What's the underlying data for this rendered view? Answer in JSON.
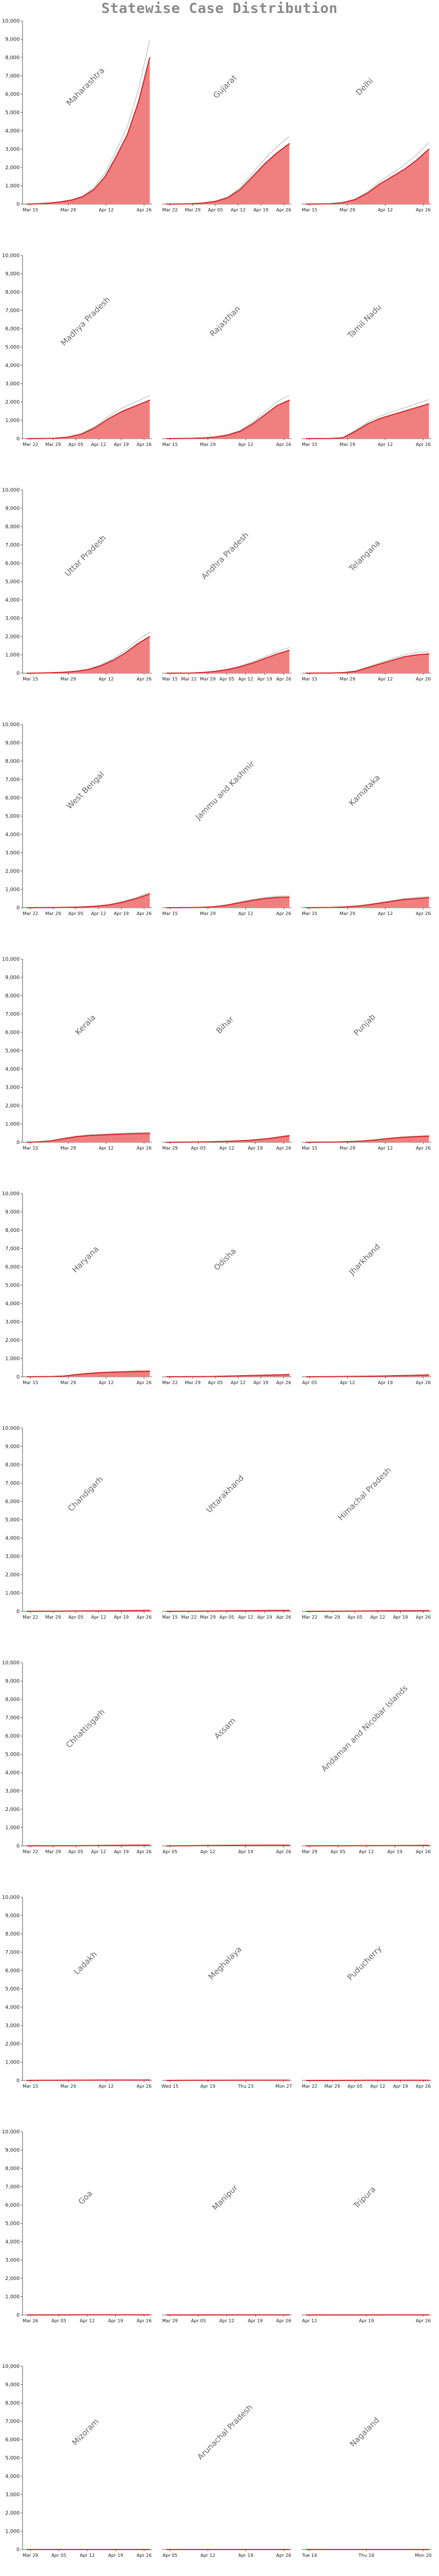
{
  "title": "Statewise Case Distribution",
  "colors": {
    "area": "#f08080",
    "line": "#d62728",
    "band": "#bfbfbf",
    "axis": "#333333"
  },
  "chart_data": {
    "type": "area",
    "layout": "small multiples, 11 rows x 3 columns, shared y axis",
    "ylim": [
      0,
      10000
    ],
    "yticks": [
      "0",
      "1,000",
      "2,000",
      "3,000",
      "4,000",
      "5,000",
      "6,000",
      "7,000",
      "8,000",
      "9,000",
      "10,000"
    ],
    "ytick_values": [
      0,
      1000,
      2000,
      3000,
      4000,
      5000,
      6000,
      7000,
      8000,
      9000,
      10000
    ],
    "panels": [
      {
        "name": "Maharashtra",
        "xticks": [
          "Mar 15",
          "Mar 29",
          "Apr 12",
          "Apr 26"
        ],
        "values": [
          0,
          20,
          60,
          120,
          220,
          400,
          800,
          1500,
          2600,
          3800,
          5600,
          8000
        ]
      },
      {
        "name": "Gujarat",
        "xticks": [
          "Mar 22",
          "Mar 29",
          "Apr 05",
          "Apr 12",
          "Apr 19",
          "Apr 26"
        ],
        "values": [
          0,
          5,
          20,
          60,
          150,
          350,
          800,
          1500,
          2200,
          2800,
          3300
        ]
      },
      {
        "name": "Delhi",
        "xticks": [
          "Mar 15",
          "Mar 29",
          "Apr 12",
          "Apr 26"
        ],
        "values": [
          0,
          5,
          20,
          80,
          250,
          600,
          1100,
          1500,
          1900,
          2400,
          3000
        ]
      },
      {
        "name": "Madhya Pradesh",
        "xticks": [
          "Mar 22",
          "Mar 29",
          "Apr 05",
          "Apr 12",
          "Apr 19",
          "Apr 26"
        ],
        "values": [
          0,
          5,
          20,
          80,
          250,
          600,
          1100,
          1500,
          1800,
          2100
        ]
      },
      {
        "name": "Rajasthan",
        "xticks": [
          "Mar 15",
          "Mar 29",
          "Apr 12",
          "Apr 26"
        ],
        "values": [
          0,
          5,
          15,
          40,
          90,
          200,
          400,
          800,
          1300,
          1800,
          2100
        ]
      },
      {
        "name": "Tamil Nadu",
        "xticks": [
          "Mar 15",
          "Mar 29",
          "Apr 12",
          "Apr 26"
        ],
        "values": [
          0,
          2,
          5,
          50,
          400,
          800,
          1100,
          1300,
          1500,
          1700,
          1900
        ]
      },
      {
        "name": "Uttar Pradesh",
        "xticks": [
          "Mar 15",
          "Mar 29",
          "Apr 12",
          "Apr 26"
        ],
        "values": [
          0,
          5,
          20,
          50,
          100,
          200,
          400,
          700,
          1100,
          1600,
          2000
        ]
      },
      {
        "name": "Andhra Pradesh",
        "xticks": [
          "Mar 15",
          "Mar 22",
          "Mar 29",
          "Apr 05",
          "Apr 12",
          "Apr 19",
          "Apr 26"
        ],
        "values": [
          0,
          2,
          10,
          40,
          100,
          200,
          350,
          550,
          800,
          1050,
          1250
        ]
      },
      {
        "name": "Telangana",
        "xticks": [
          "Mar 15",
          "Mar 29",
          "Apr 12",
          "Apr 26"
        ],
        "values": [
          0,
          5,
          10,
          30,
          100,
          300,
          500,
          700,
          900,
          1000,
          1050
        ]
      },
      {
        "name": "West Bengal",
        "xticks": [
          "Mar 22",
          "Mar 29",
          "Apr 05",
          "Apr 12",
          "Apr 19",
          "Apr 26"
        ],
        "values": [
          0,
          5,
          10,
          20,
          40,
          80,
          150,
          300,
          500,
          750
        ]
      },
      {
        "name": "Jammu and Kashmir",
        "xticks": [
          "Mar 15",
          "Mar 29",
          "Apr 12",
          "Apr 26"
        ],
        "values": [
          0,
          2,
          5,
          20,
          60,
          150,
          280,
          400,
          500,
          560,
          580
        ]
      },
      {
        "name": "Karnataka",
        "xticks": [
          "Mar 15",
          "Mar 29",
          "Apr 12",
          "Apr 26"
        ],
        "values": [
          0,
          5,
          15,
          40,
          80,
          150,
          250,
          350,
          450,
          500,
          550
        ]
      },
      {
        "name": "Kerala",
        "xticks": [
          "Mar 15",
          "Mar 29",
          "Apr 12",
          "Apr 26"
        ],
        "values": [
          0,
          20,
          80,
          200,
          300,
          360,
          390,
          420,
          450,
          470,
          480
        ]
      },
      {
        "name": "Bihar",
        "xticks": [
          "Mar 29",
          "Apr 05",
          "Apr 12",
          "Apr 19",
          "Apr 26"
        ],
        "values": [
          0,
          5,
          20,
          50,
          100,
          200,
          350
        ]
      },
      {
        "name": "Punjab",
        "xticks": [
          "Mar 15",
          "Mar 29",
          "Apr 12",
          "Apr 26"
        ],
        "values": [
          0,
          5,
          10,
          30,
          60,
          120,
          200,
          260,
          300,
          330
        ]
      },
      {
        "name": "Haryana",
        "xticks": [
          "Mar 15",
          "Mar 29",
          "Apr 12",
          "Apr 26"
        ],
        "values": [
          0,
          5,
          15,
          40,
          120,
          180,
          220,
          250,
          270,
          290,
          300
        ]
      },
      {
        "name": "Odisha",
        "xticks": [
          "Mar 22",
          "Mar 29",
          "Apr 05",
          "Apr 12",
          "Apr 19",
          "Apr 26"
        ],
        "values": [
          0,
          2,
          5,
          15,
          40,
          60,
          80,
          100,
          120
        ]
      },
      {
        "name": "Jharkhand",
        "xticks": [
          "Apr 05",
          "Apr 12",
          "Apr 19",
          "Apr 26"
        ],
        "values": [
          0,
          5,
          20,
          40,
          70,
          100
        ]
      },
      {
        "name": "Chandigarh",
        "xticks": [
          "Mar 22",
          "Mar 29",
          "Apr 05",
          "Apr 12",
          "Apr 19",
          "Apr 26"
        ],
        "values": [
          0,
          5,
          10,
          15,
          20,
          25,
          30,
          40,
          50
        ]
      },
      {
        "name": "Uttarakhand",
        "xticks": [
          "Mar 15",
          "Mar 22",
          "Mar 29",
          "Apr 05",
          "Apr 12",
          "Apr 19",
          "Apr 26"
        ],
        "values": [
          0,
          3,
          7,
          15,
          25,
          35,
          40,
          45,
          50
        ]
      },
      {
        "name": "Himachal Pradesh",
        "xticks": [
          "Mar 22",
          "Mar 29",
          "Apr 05",
          "Apr 12",
          "Apr 19",
          "Apr 26"
        ],
        "values": [
          0,
          2,
          5,
          15,
          25,
          30,
          35,
          40
        ]
      },
      {
        "name": "Chhattisgarh",
        "xticks": [
          "Mar 22",
          "Mar 29",
          "Apr 05",
          "Apr 12",
          "Apr 19",
          "Apr 26"
        ],
        "values": [
          0,
          2,
          5,
          8,
          15,
          25,
          30,
          36,
          38
        ]
      },
      {
        "name": "Assam",
        "xticks": [
          "Apr 05",
          "Apr 12",
          "Apr 19",
          "Apr 26"
        ],
        "values": [
          0,
          10,
          20,
          30,
          35,
          36,
          36
        ]
      },
      {
        "name": "Andaman and Nicobar Islands",
        "xticks": [
          "Mar 29",
          "Apr 05",
          "Apr 12",
          "Apr 19",
          "Apr 26"
        ],
        "values": [
          0,
          5,
          10,
          12,
          14,
          18,
          30
        ]
      },
      {
        "name": "Ladakh",
        "xticks": [
          "Mar 15",
          "Mar 29",
          "Apr 12",
          "Apr 26"
        ],
        "values": [
          0,
          5,
          10,
          13,
          15,
          17,
          18,
          19,
          20
        ]
      },
      {
        "name": "Meghalaya",
        "xticks": [
          "Wed 15",
          "Apr 19",
          "Thu 23",
          "Mon 27"
        ],
        "values": [
          0,
          5,
          10,
          11,
          11,
          12
        ]
      },
      {
        "name": "Puducherry",
        "xticks": [
          "Mar 22",
          "Mar 29",
          "Apr 05",
          "Apr 12",
          "Apr 19",
          "Apr 26"
        ],
        "values": [
          0,
          1,
          3,
          5,
          7,
          7,
          8
        ]
      },
      {
        "name": "Goa",
        "xticks": [
          "Mar 26",
          "Apr 05",
          "Apr 12",
          "Apr 19",
          "Apr 26"
        ],
        "values": [
          0,
          3,
          5,
          7,
          7,
          7
        ]
      },
      {
        "name": "Manipur",
        "xticks": [
          "Mar 29",
          "Apr 05",
          "Apr 12",
          "Apr 19",
          "Apr 26"
        ],
        "values": [
          0,
          1,
          2,
          2,
          2,
          2
        ]
      },
      {
        "name": "Tripura",
        "xticks": [
          "Apr 12",
          "Apr 19",
          "Apr 26"
        ],
        "values": [
          0,
          1,
          2,
          2
        ]
      },
      {
        "name": "Mizoram",
        "xticks": [
          "Mar 29",
          "Apr 05",
          "Apr 12",
          "Apr 19",
          "Apr 26"
        ],
        "values": [
          0,
          1,
          1,
          1,
          1,
          1
        ]
      },
      {
        "name": "Arunachal Pradesh",
        "xticks": [
          "Apr 05",
          "Apr 12",
          "Apr 19",
          "Apr 26"
        ],
        "values": [
          0,
          1,
          1,
          1,
          1
        ]
      },
      {
        "name": "Nagaland",
        "xticks": [
          "Tue 14",
          "Thu 16",
          "Mon 20"
        ],
        "values": [
          0,
          1,
          1
        ]
      }
    ]
  }
}
